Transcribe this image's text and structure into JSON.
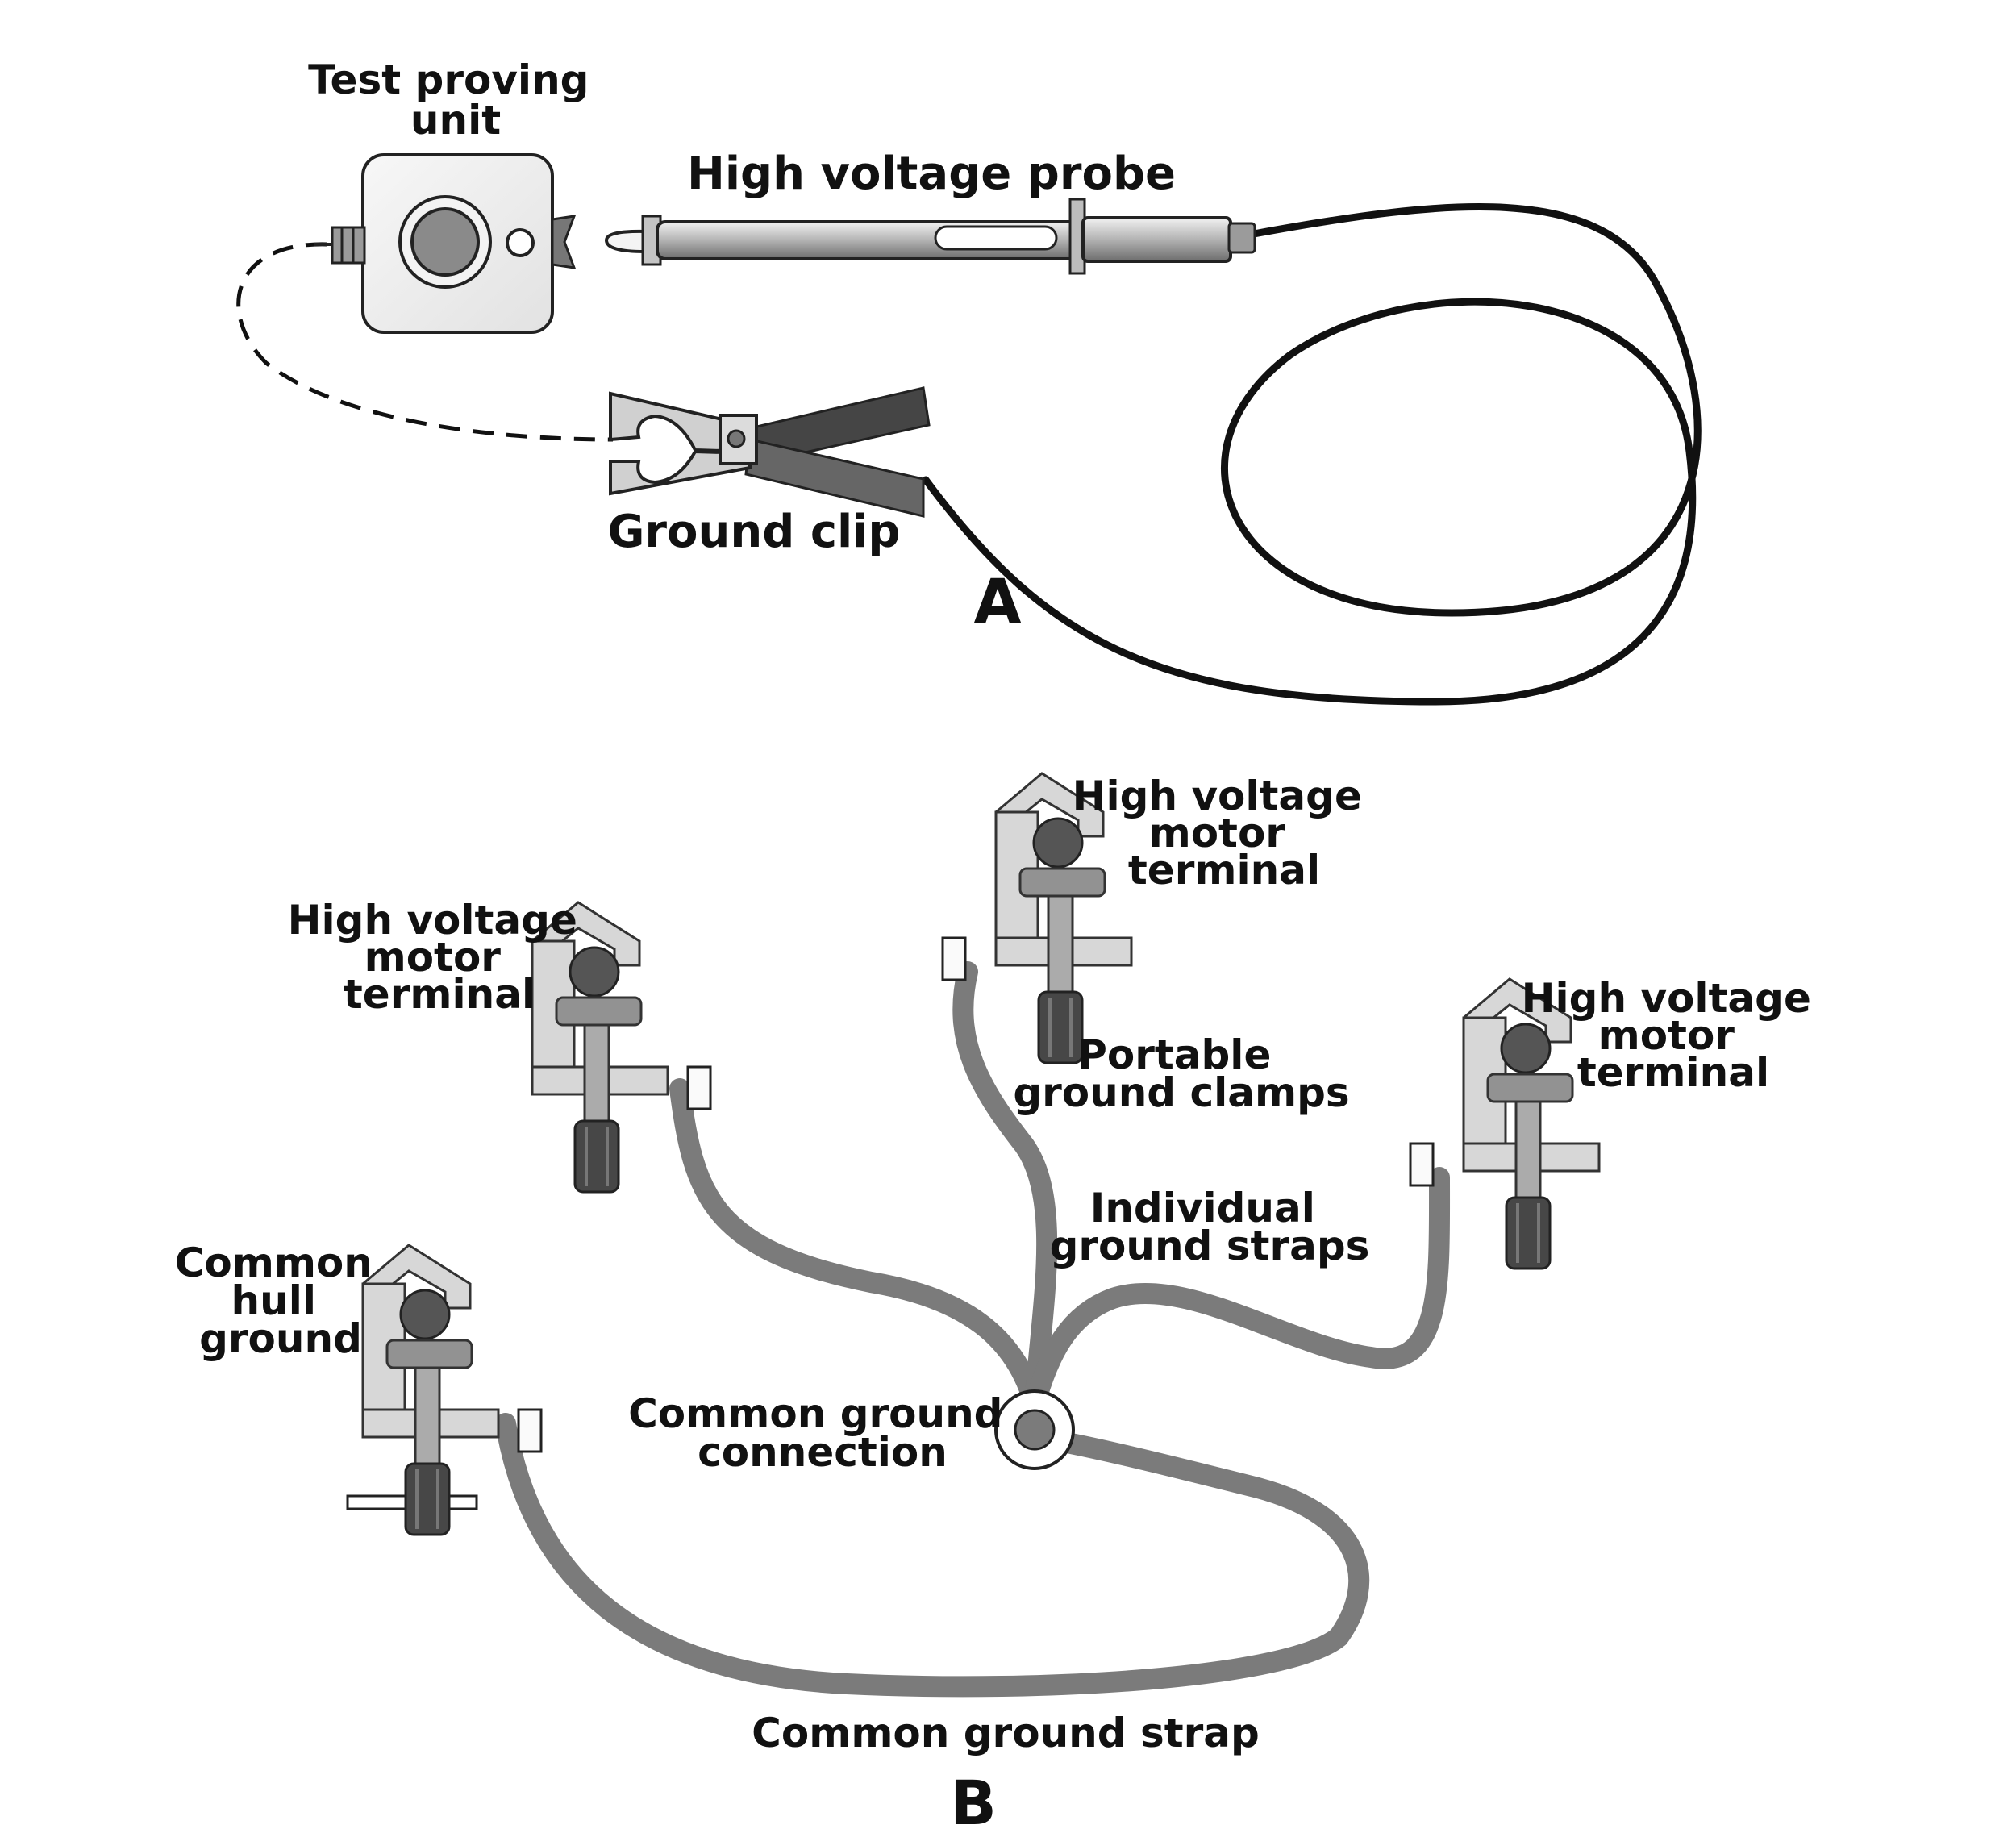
{
  "panel_a": {
    "letter": "A",
    "test_proving_unit": [
      "Test proving",
      "unit"
    ],
    "high_voltage_probe": "High voltage probe",
    "ground_clip": "Ground clip"
  },
  "panel_b": {
    "letter": "B",
    "terminal_left": [
      "High voltage",
      "motor",
      "terminal"
    ],
    "terminal_center": [
      "High voltage",
      "motor",
      "terminal"
    ],
    "terminal_right": [
      "High voltage",
      "motor",
      "terminal"
    ],
    "portable_ground_clamps": [
      "Portable",
      "ground clamps"
    ],
    "individual_ground_straps": [
      "Individual",
      "ground straps"
    ],
    "common_hull_ground": [
      "Common",
      "hull",
      "ground"
    ],
    "common_ground_connection": [
      "Common ground",
      "connection"
    ],
    "common_ground_strap": "Common ground strap"
  },
  "colors": {
    "strap": "#7b7b7b",
    "clamp_body": "#d7d7d7",
    "clamp_screw": "#a9a9a9",
    "terminal_ball": "#555555",
    "handle": "#474747",
    "cable": "#111111"
  }
}
